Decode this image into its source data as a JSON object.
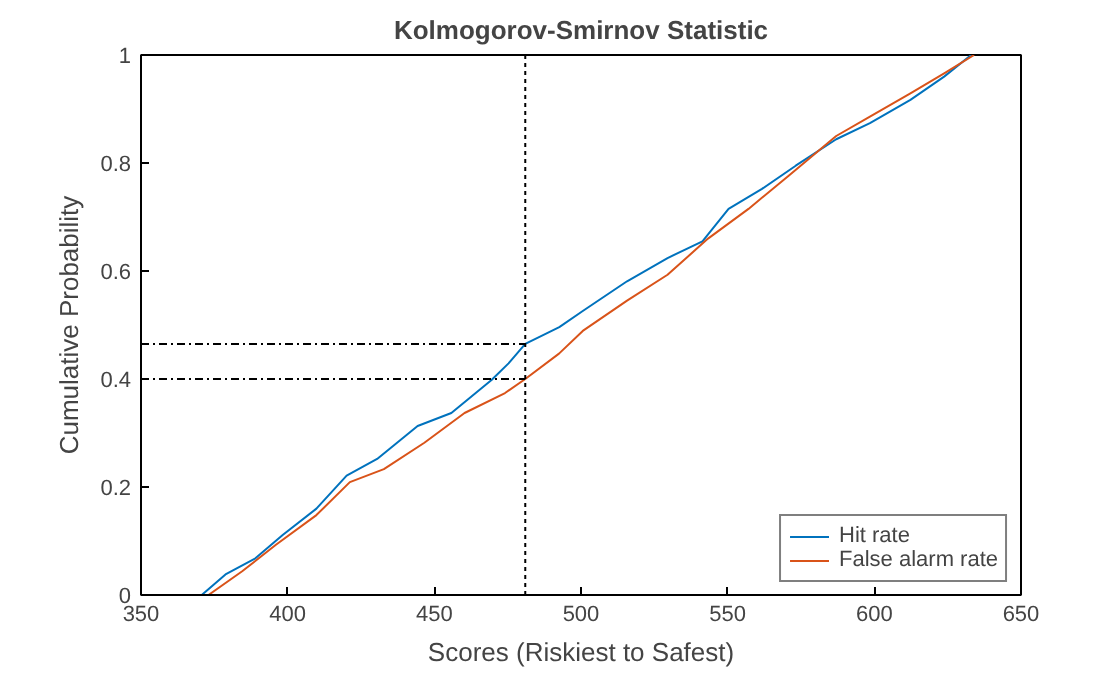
{
  "chart_data": {
    "type": "line",
    "title": "Kolmogorov-Smirnov Statistic",
    "xlabel": "Scores (Riskiest to Safest)",
    "ylabel": "Cumulative Probability",
    "xlim": [
      350,
      650
    ],
    "xticks": [
      350,
      400,
      450,
      500,
      550,
      600,
      650
    ],
    "ylim": [
      0,
      1
    ],
    "yticks": [
      0,
      0.2,
      0.4,
      0.6,
      0.8,
      1
    ],
    "grid": false,
    "legend": "bottom right",
    "marker": "none",
    "line_style": "solid",
    "series": [
      {
        "name": "Hit rate",
        "color": "#0072bd",
        "x": [
          370.7,
          378.8,
          389,
          398.3,
          409.8,
          420.1,
          430.5,
          444.3,
          455.8,
          469.5,
          475.3,
          481,
          492.6,
          500.6,
          515.7,
          529.5,
          541.4,
          550.3,
          561.7,
          573.2,
          587,
          598.5,
          612.3,
          623.8,
          633
        ],
        "values": [
          0,
          0.038,
          0.068,
          0.111,
          0.16,
          0.221,
          0.252,
          0.313,
          0.337,
          0.398,
          0.429,
          0.465,
          0.496,
          0.526,
          0.581,
          0.624,
          0.655,
          0.715,
          0.752,
          0.795,
          0.844,
          0.874,
          0.917,
          0.96,
          1.0
        ]
      },
      {
        "name": "False alarm rate",
        "color": "#d95319",
        "x": [
          373,
          384.5,
          396,
          409.8,
          421.2,
          432.8,
          446.6,
          460.3,
          474.1,
          481,
          492.5,
          500.6,
          515.7,
          529.5,
          543.3,
          557.1,
          570.9,
          587,
          598.5,
          612.3,
          623.8,
          634
        ],
        "values": [
          0,
          0.044,
          0.093,
          0.148,
          0.209,
          0.233,
          0.282,
          0.337,
          0.374,
          0.4,
          0.447,
          0.489,
          0.545,
          0.593,
          0.66,
          0.715,
          0.777,
          0.85,
          0.886,
          0.929,
          0.966,
          1.0
        ]
      },
      {
        "color": "#000000",
        "line_style": "dashed",
        "x": [
          350,
          481
        ],
        "values": [
          0.465,
          0.465
        ]
      },
      {
        "color": "#000000",
        "line_style": "dashed",
        "x": [
          350,
          481
        ],
        "values": [
          0.4,
          0.4
        ]
      }
    ],
    "ref_lines": [
      {
        "axis": "x",
        "value": 481,
        "color": "#000000",
        "line_style": "dotted"
      }
    ]
  }
}
